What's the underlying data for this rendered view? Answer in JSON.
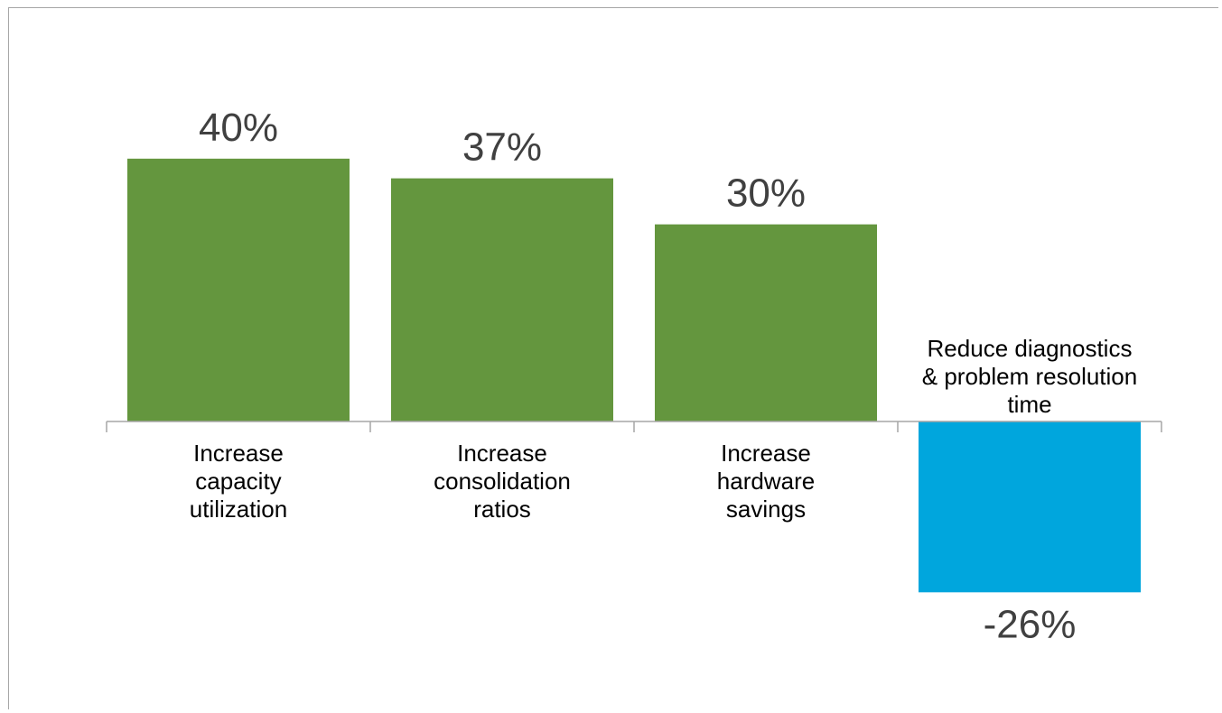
{
  "chart_data": {
    "type": "bar",
    "title": "",
    "xlabel": "",
    "ylabel": "",
    "categories": [
      [
        "Increase",
        "capacity",
        "utilization"
      ],
      [
        "Increase",
        "consolidation",
        "ratios"
      ],
      [
        "Increase",
        "hardware",
        "savings"
      ],
      [
        "Reduce diagnostics",
        "& problem resolution",
        "time"
      ]
    ],
    "values": [
      40,
      37,
      30,
      -26
    ],
    "value_labels": [
      "40%",
      "37%",
      "30%",
      "-26%"
    ],
    "ylim": [
      -26,
      40
    ],
    "grid": false,
    "legend": "none",
    "colors": {
      "positive": "#64963e",
      "negative": "#00a6dd",
      "axis": "#a6a6a6",
      "label": "#404040",
      "category": "#000000"
    }
  }
}
